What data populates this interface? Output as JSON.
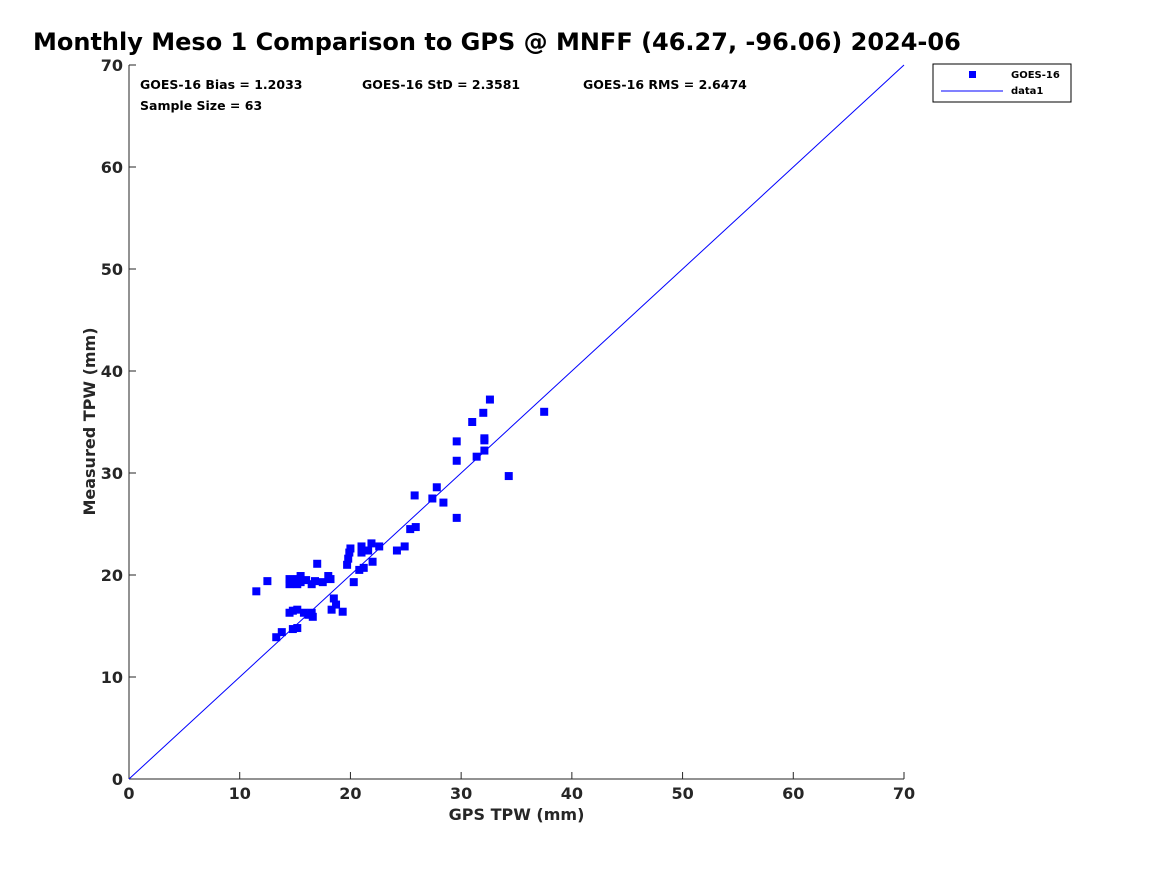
{
  "chart_data": {
    "type": "scatter",
    "title": "Monthly Meso 1 Comparison to GPS @ MNFF (46.27, -96.06) 2024-06",
    "xlabel": "GPS TPW (mm)",
    "ylabel": "Measured TPW (mm)",
    "xlim": [
      0,
      70
    ],
    "ylim": [
      0,
      70
    ],
    "xticks": [
      "0",
      "10",
      "20",
      "30",
      "40",
      "50",
      "60",
      "70"
    ],
    "yticks": [
      "0",
      "10",
      "20",
      "30",
      "40",
      "50",
      "60",
      "70"
    ],
    "grid": false,
    "legend_position": "top-right outside",
    "stats": {
      "bias": "GOES-16 Bias = 1.2033",
      "std": "GOES-16 StD = 2.3581",
      "rms": "GOES-16 RMS = 2.6474",
      "sample": "Sample Size = 63"
    },
    "series": [
      {
        "name": "GOES-16",
        "kind": "scatter",
        "marker": "square",
        "color": "#0000ff",
        "points": [
          [
            11.5,
            18.4
          ],
          [
            12.5,
            19.4
          ],
          [
            13.3,
            13.9
          ],
          [
            13.8,
            14.4
          ],
          [
            14.5,
            19.6
          ],
          [
            14.5,
            19.1
          ],
          [
            14.5,
            16.3
          ],
          [
            14.8,
            16.5
          ],
          [
            14.8,
            14.7
          ],
          [
            15.2,
            19.6
          ],
          [
            15.2,
            19.1
          ],
          [
            15.2,
            16.6
          ],
          [
            15.2,
            14.8
          ],
          [
            15.5,
            19.9
          ],
          [
            15.5,
            19.3
          ],
          [
            15.8,
            16.3
          ],
          [
            16.0,
            19.5
          ],
          [
            16.2,
            16.1
          ],
          [
            16.5,
            19.1
          ],
          [
            16.5,
            16.3
          ],
          [
            16.6,
            15.9
          ],
          [
            16.8,
            19.4
          ],
          [
            17.0,
            21.1
          ],
          [
            17.5,
            19.3
          ],
          [
            18.0,
            19.9
          ],
          [
            18.2,
            19.6
          ],
          [
            18.3,
            16.6
          ],
          [
            18.5,
            17.7
          ],
          [
            18.7,
            17.1
          ],
          [
            19.3,
            16.4
          ],
          [
            19.7,
            21.0
          ],
          [
            19.8,
            21.6
          ],
          [
            19.9,
            22.2
          ],
          [
            20.0,
            22.6
          ],
          [
            20.3,
            19.3
          ],
          [
            20.8,
            20.5
          ],
          [
            21.0,
            22.8
          ],
          [
            21.0,
            22.2
          ],
          [
            21.2,
            20.7
          ],
          [
            21.6,
            22.4
          ],
          [
            21.9,
            23.1
          ],
          [
            22.0,
            21.3
          ],
          [
            24.2,
            22.4
          ],
          [
            24.9,
            22.8
          ],
          [
            25.4,
            24.5
          ],
          [
            25.8,
            27.8
          ],
          [
            25.9,
            24.7
          ],
          [
            27.4,
            27.5
          ],
          [
            27.8,
            28.6
          ],
          [
            28.4,
            27.1
          ],
          [
            29.6,
            33.1
          ],
          [
            29.6,
            31.2
          ],
          [
            29.6,
            25.6
          ],
          [
            31.0,
            35.0
          ],
          [
            31.4,
            31.6
          ],
          [
            32.0,
            35.9
          ],
          [
            32.1,
            33.4
          ],
          [
            32.1,
            33.2
          ],
          [
            32.1,
            32.2
          ],
          [
            32.6,
            37.2
          ],
          [
            34.3,
            29.7
          ],
          [
            37.5,
            36.0
          ],
          [
            22.6,
            22.8
          ]
        ]
      },
      {
        "name": "data1",
        "kind": "line",
        "color": "#0000ff",
        "points": [
          [
            0,
            0
          ],
          [
            70,
            70
          ]
        ]
      }
    ]
  }
}
